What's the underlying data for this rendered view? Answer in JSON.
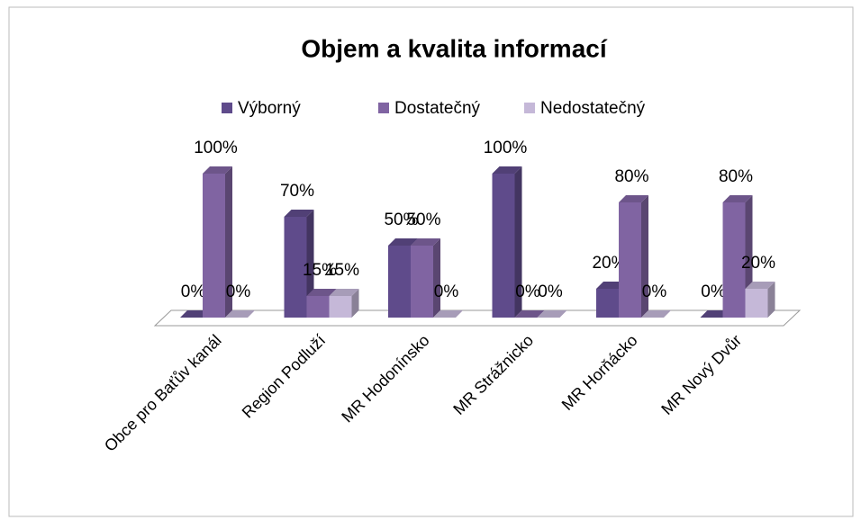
{
  "chart_data": {
    "type": "bar3d",
    "title": "Objem a kvalita informací",
    "categories": [
      "Obce pro Baťův kanál",
      "Region Podluží",
      "MR Hodonínsko",
      "MR Strážnicko",
      "MR Horňácko",
      "MR Nový Dvůr"
    ],
    "series": [
      {
        "name": "Výborný",
        "color": "#5f4b8b",
        "values": [
          0,
          70,
          50,
          100,
          20,
          0
        ],
        "value_labels": [
          "0%",
          "70%",
          "50%",
          "100%",
          "20%",
          "0%"
        ]
      },
      {
        "name": "Dostatečný",
        "color": "#8064a2",
        "values": [
          100,
          15,
          50,
          0,
          80,
          80
        ],
        "value_labels": [
          "100%",
          "15%",
          "50%",
          "0%",
          "80%",
          "80%"
        ]
      },
      {
        "name": "Nedostatečný",
        "color": "#c5b8d8",
        "values": [
          0,
          15,
          0,
          0,
          0,
          20
        ],
        "value_labels": [
          "0%",
          "15%",
          "0%",
          "0%",
          "0%",
          "20%"
        ]
      }
    ],
    "legend": "top"
  }
}
